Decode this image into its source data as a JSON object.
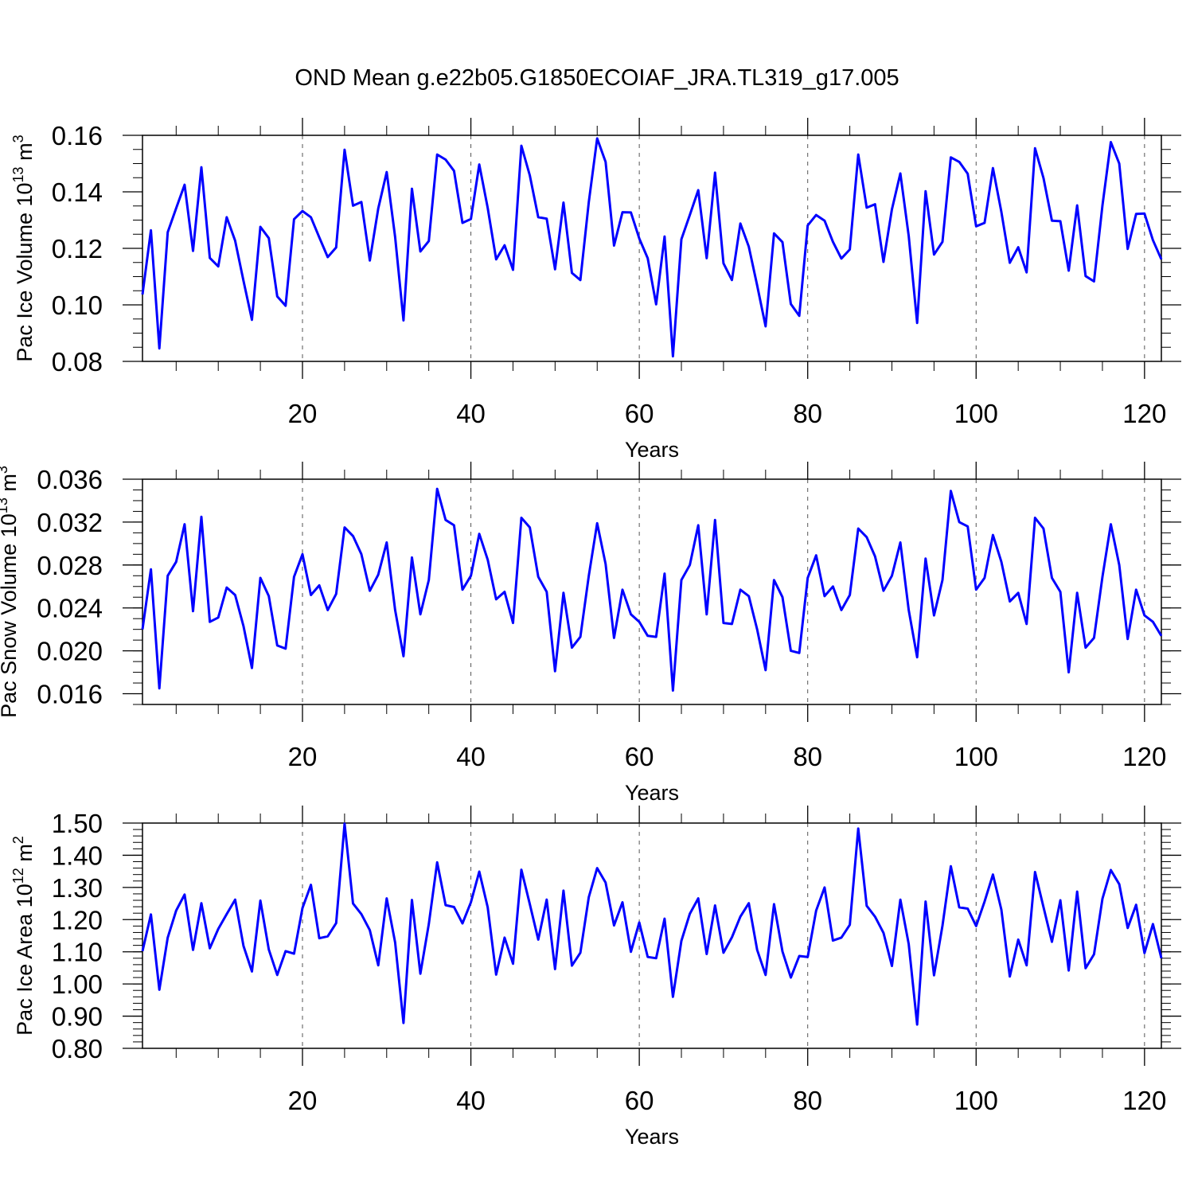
{
  "title": "OND Mean g.e22b05.G1850ECOIAF_JRA.TL319_g17.005",
  "line_color": "#0000ff",
  "chart_data": [
    {
      "type": "line",
      "ylabel_main": "Pac Ice Volume 10",
      "ylabel_exp": "13",
      "ylabel_unit": " m",
      "ylabel_unit_exp": "3",
      "xlabel": "Years",
      "xlim": [
        1,
        122
      ],
      "ylim": [
        0.08,
        0.16
      ],
      "xticks": [
        20,
        40,
        60,
        80,
        100,
        120
      ],
      "xtick_labels": [
        "20",
        "40",
        "60",
        "80",
        "100",
        "120"
      ],
      "yticks": [
        0.08,
        0.1,
        0.12,
        0.14,
        0.16
      ],
      "ytick_labels": [
        "0.08",
        "0.10",
        "0.12",
        "0.14",
        "0.16"
      ],
      "yminor": 0.005,
      "grid": "dashed vertical lines at x ticks",
      "series": [
        {
          "name": "Pac Ice Volume",
          "values": [
            0.1037,
            0.1264,
            0.0846,
            0.1257,
            0.1342,
            0.1425,
            0.1191,
            0.1487,
            0.1166,
            0.1136,
            0.131,
            0.1227,
            0.1085,
            0.0947,
            0.1276,
            0.1236,
            0.103,
            0.0997,
            0.1303,
            0.1332,
            0.131,
            0.1239,
            0.1169,
            0.1203,
            0.1549,
            0.1351,
            0.1364,
            0.1157,
            0.1341,
            0.147,
            0.124,
            0.0945,
            0.1411,
            0.1189,
            0.1226,
            0.1532,
            0.1514,
            0.1474,
            0.129,
            0.1304,
            0.1497,
            0.1343,
            0.1161,
            0.1211,
            0.1124,
            0.1563,
            0.1458,
            0.131,
            0.1305,
            0.1126,
            0.1362,
            0.1113,
            0.1088,
            0.1364,
            0.1589,
            0.1506,
            0.121,
            0.1328,
            0.1327,
            0.1235,
            0.1165,
            0.1002,
            0.1242,
            0.0818,
            0.1232,
            0.1318,
            0.1406,
            0.1165,
            0.1468,
            0.1147,
            0.1088,
            0.1288,
            0.1206,
            0.1069,
            0.0924,
            0.1253,
            0.1222,
            0.1003,
            0.0961,
            0.1281,
            0.1318,
            0.1298,
            0.1223,
            0.1164,
            0.1196,
            0.1532,
            0.1344,
            0.1356,
            0.1152,
            0.1338,
            0.1465,
            0.1244,
            0.0936,
            0.1402,
            0.1178,
            0.1223,
            0.1522,
            0.1506,
            0.1464,
            0.1278,
            0.129,
            0.1484,
            0.1329,
            0.1149,
            0.1204,
            0.1115,
            0.1554,
            0.1449,
            0.1298,
            0.1296,
            0.1121,
            0.1352,
            0.1102,
            0.1083,
            0.1352,
            0.1576,
            0.15,
            0.1198,
            0.1322,
            0.1323,
            0.1229,
            0.1161
          ]
        }
      ]
    },
    {
      "type": "line",
      "ylabel_main": "Pac Snow Volume 10",
      "ylabel_exp": "13",
      "ylabel_unit": " m",
      "ylabel_unit_exp": "3",
      "xlabel": "Years",
      "xlim": [
        1,
        122
      ],
      "ylim": [
        0.015,
        0.036
      ],
      "xticks": [
        20,
        40,
        60,
        80,
        100,
        120
      ],
      "xtick_labels": [
        "20",
        "40",
        "60",
        "80",
        "100",
        "120"
      ],
      "yticks": [
        0.016,
        0.02,
        0.024,
        0.028,
        0.032,
        0.036
      ],
      "ytick_labels": [
        "0.016",
        "0.020",
        "0.024",
        "0.028",
        "0.032",
        "0.036"
      ],
      "yminor": 0.001,
      "grid": "dashed vertical lines at x ticks",
      "series": [
        {
          "name": "Pac Snow Volume",
          "values": [
            0.022,
            0.0276,
            0.0165,
            0.027,
            0.0283,
            0.0318,
            0.0237,
            0.0325,
            0.0227,
            0.0231,
            0.0259,
            0.0252,
            0.0223,
            0.0184,
            0.0268,
            0.0251,
            0.0205,
            0.0202,
            0.0269,
            0.029,
            0.0252,
            0.0261,
            0.0238,
            0.0253,
            0.0315,
            0.0307,
            0.029,
            0.0256,
            0.0271,
            0.0301,
            0.0238,
            0.0195,
            0.0287,
            0.0234,
            0.0266,
            0.0351,
            0.0322,
            0.0317,
            0.0257,
            0.027,
            0.0309,
            0.0285,
            0.0248,
            0.0255,
            0.0226,
            0.0324,
            0.0315,
            0.0269,
            0.0255,
            0.0181,
            0.0254,
            0.0203,
            0.0213,
            0.027,
            0.0319,
            0.0281,
            0.0212,
            0.0257,
            0.0234,
            0.0227,
            0.0214,
            0.0213,
            0.0272,
            0.0163,
            0.0266,
            0.028,
            0.0317,
            0.0234,
            0.0322,
            0.0226,
            0.0225,
            0.0257,
            0.0251,
            0.022,
            0.0182,
            0.0266,
            0.025,
            0.02,
            0.0198,
            0.0268,
            0.0289,
            0.0251,
            0.026,
            0.0238,
            0.0252,
            0.0314,
            0.0306,
            0.0288,
            0.0256,
            0.027,
            0.0301,
            0.0238,
            0.0194,
            0.0286,
            0.0233,
            0.0266,
            0.0349,
            0.032,
            0.0316,
            0.0257,
            0.0268,
            0.0308,
            0.0283,
            0.0246,
            0.0254,
            0.0225,
            0.0324,
            0.0314,
            0.0268,
            0.0255,
            0.018,
            0.0254,
            0.0203,
            0.0212,
            0.0269,
            0.0318,
            0.028,
            0.0211,
            0.0257,
            0.0233,
            0.0227,
            0.0214
          ]
        }
      ]
    },
    {
      "type": "line",
      "ylabel_main": "Pac Ice Area 10",
      "ylabel_exp": "12",
      "ylabel_unit": " m",
      "ylabel_unit_exp": "2",
      "xlabel": "Years",
      "xlim": [
        1,
        122
      ],
      "ylim": [
        0.8,
        1.5
      ],
      "xticks": [
        20,
        40,
        60,
        80,
        100,
        120
      ],
      "xtick_labels": [
        "20",
        "40",
        "60",
        "80",
        "100",
        "120"
      ],
      "yticks": [
        0.8,
        0.9,
        1.0,
        1.1,
        1.2,
        1.3,
        1.4,
        1.5
      ],
      "ytick_labels": [
        "0.80",
        "0.90",
        "1.00",
        "1.10",
        "1.20",
        "1.30",
        "1.40",
        "1.50"
      ],
      "yminor": 0.02,
      "grid": "dashed vertical lines at x ticks",
      "series": [
        {
          "name": "Pac Ice Area",
          "values": [
            1.102,
            1.216,
            0.982,
            1.144,
            1.228,
            1.278,
            1.106,
            1.251,
            1.111,
            1.171,
            1.217,
            1.262,
            1.118,
            1.039,
            1.259,
            1.107,
            1.028,
            1.102,
            1.094,
            1.236,
            1.308,
            1.142,
            1.148,
            1.189,
            1.498,
            1.25,
            1.217,
            1.167,
            1.058,
            1.266,
            1.129,
            0.879,
            1.261,
            1.032,
            1.186,
            1.378,
            1.245,
            1.239,
            1.188,
            1.254,
            1.349,
            1.238,
            1.029,
            1.144,
            1.063,
            1.355,
            1.248,
            1.138,
            1.262,
            1.046,
            1.29,
            1.057,
            1.097,
            1.27,
            1.36,
            1.315,
            1.182,
            1.254,
            1.1,
            1.191,
            1.084,
            1.08,
            1.203,
            0.96,
            1.134,
            1.218,
            1.266,
            1.093,
            1.244,
            1.097,
            1.145,
            1.209,
            1.251,
            1.106,
            1.028,
            1.248,
            1.101,
            1.02,
            1.087,
            1.084,
            1.228,
            1.3,
            1.135,
            1.144,
            1.184,
            1.483,
            1.243,
            1.209,
            1.159,
            1.056,
            1.262,
            1.124,
            0.874,
            1.256,
            1.027,
            1.181,
            1.366,
            1.238,
            1.234,
            1.18,
            1.256,
            1.34,
            1.231,
            1.023,
            1.138,
            1.058,
            1.348,
            1.239,
            1.131,
            1.26,
            1.042,
            1.287,
            1.049,
            1.092,
            1.265,
            1.354,
            1.31,
            1.174,
            1.246,
            1.096,
            1.186,
            1.08
          ]
        }
      ]
    }
  ]
}
